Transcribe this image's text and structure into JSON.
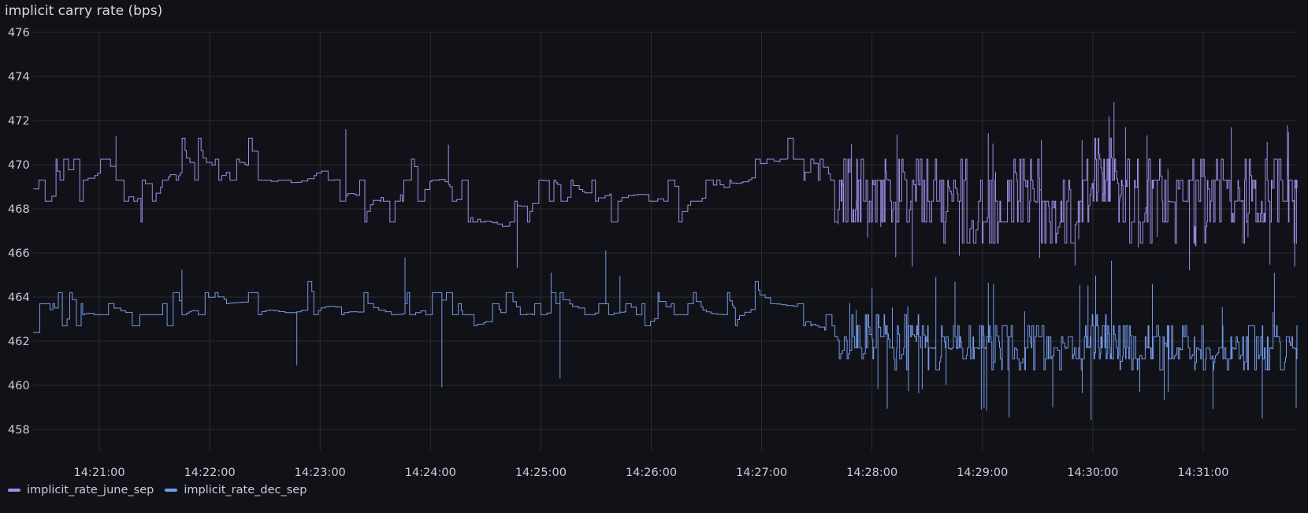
{
  "panel": {
    "title": "implicit carry rate (bps)"
  },
  "chart_data": {
    "type": "line",
    "title": "implicit carry rate (bps)",
    "xlabel": "",
    "ylabel": "",
    "grid": true,
    "legend_position": "bottom-left",
    "x_range": [
      "14:20:24",
      "14:31:51"
    ],
    "y_range": [
      457,
      476
    ],
    "x_ticks": [
      "14:21:00",
      "14:22:00",
      "14:23:00",
      "14:24:00",
      "14:25:00",
      "14:26:00",
      "14:27:00",
      "14:28:00",
      "14:29:00",
      "14:30:00",
      "14:31:00"
    ],
    "y_ticks": [
      "458",
      "460",
      "462",
      "464",
      "466",
      "468",
      "470",
      "472",
      "474",
      "476"
    ],
    "series": [
      {
        "name": "implicit_rate_june_sep",
        "color": "#9d8ee8",
        "interpolation": "step",
        "x": [
          "14:20:24",
          "14:20:40",
          "14:21:00",
          "14:21:20",
          "14:21:40",
          "14:22:00",
          "14:22:20",
          "14:22:40",
          "14:23:00",
          "14:23:20",
          "14:23:40",
          "14:24:00",
          "14:24:20",
          "14:24:40",
          "14:25:00",
          "14:25:20",
          "14:25:40",
          "14:26:00",
          "14:26:20",
          "14:26:40",
          "14:27:00",
          "14:27:20",
          "14:27:40",
          "14:28:00",
          "14:28:20",
          "14:28:40",
          "14:29:00",
          "14:29:20",
          "14:29:40",
          "14:30:00",
          "14:30:20",
          "14:30:40",
          "14:31:00",
          "14:31:20",
          "14:31:40",
          "14:31:51"
        ],
        "values": [
          468.9,
          468.9,
          469.8,
          468.6,
          469.8,
          469.8,
          469.9,
          468.8,
          469.9,
          468.5,
          468.9,
          469.8,
          468.0,
          467.0,
          469.3,
          468.6,
          468.8,
          468.6,
          468.6,
          468.8,
          469.8,
          470.5,
          468.8,
          468.8,
          468.8,
          468.6,
          467.8,
          468.8,
          467.5,
          469.5,
          468.5,
          468.3,
          468.3,
          468.4,
          468.4,
          468.4
        ]
      },
      {
        "name": "implicit_rate_dec_sep",
        "color": "#7599e8",
        "interpolation": "step",
        "x": [
          "14:20:24",
          "14:20:40",
          "14:21:00",
          "14:21:20",
          "14:21:40",
          "14:22:00",
          "14:22:20",
          "14:22:40",
          "14:23:00",
          "14:23:20",
          "14:23:40",
          "14:24:00",
          "14:24:20",
          "14:24:40",
          "14:25:00",
          "14:25:20",
          "14:25:40",
          "14:26:00",
          "14:26:20",
          "14:26:40",
          "14:27:00",
          "14:27:20",
          "14:27:40",
          "14:28:00",
          "14:28:20",
          "14:28:40",
          "14:29:00",
          "14:29:20",
          "14:29:40",
          "14:30:00",
          "14:30:20",
          "14:30:40",
          "14:31:00",
          "14:31:20",
          "14:31:40",
          "14:31:51"
        ],
        "values": [
          462.4,
          463.5,
          463.2,
          463.2,
          463.2,
          463.7,
          463.8,
          463.2,
          463.7,
          463.3,
          463.2,
          463.6,
          462.8,
          463.1,
          463.4,
          463.4,
          463.4,
          463.2,
          463.2,
          463.2,
          463.8,
          463.5,
          461.8,
          461.8,
          461.7,
          461.6,
          461.6,
          461.5,
          461.4,
          461.9,
          461.6,
          461.5,
          461.5,
          461.6,
          461.6,
          461.6
        ]
      }
    ]
  }
}
